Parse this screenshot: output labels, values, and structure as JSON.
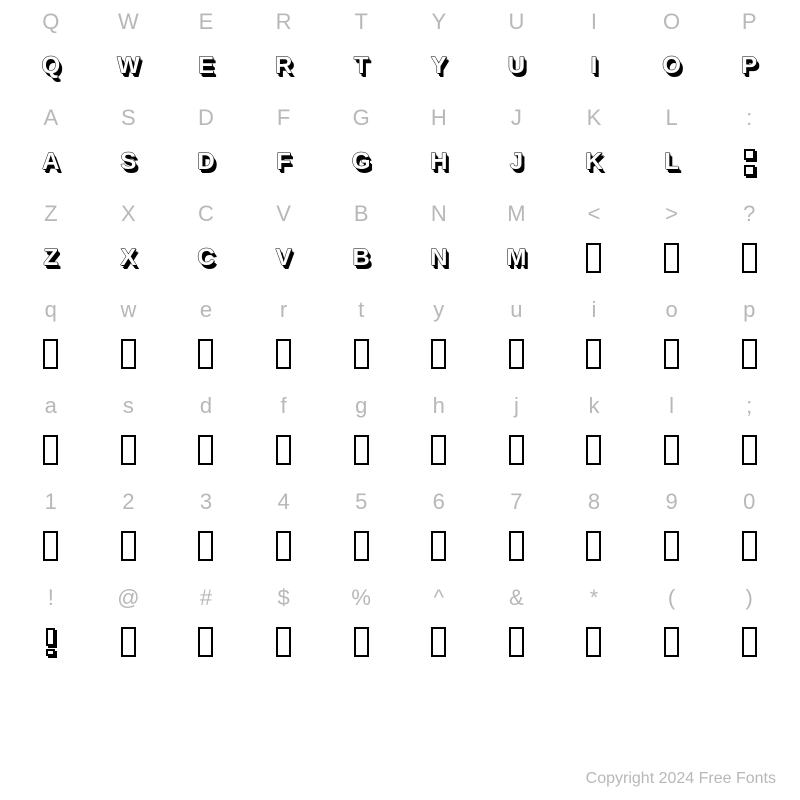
{
  "background_color": "#ffffff",
  "label_color": "#b8b8b8",
  "label_fontsize": 22,
  "glyph_color": "#000000",
  "glyph_fill": "#ffffff",
  "glyph_fontsize": 24,
  "grid": {
    "cols": 10,
    "rows": 7
  },
  "rows": [
    {
      "labels": [
        "Q",
        "W",
        "E",
        "R",
        "T",
        "Y",
        "U",
        "I",
        "O",
        "P"
      ],
      "glyphs": [
        {
          "type": "letter",
          "value": "Q"
        },
        {
          "type": "letter",
          "value": "W"
        },
        {
          "type": "letter",
          "value": "E"
        },
        {
          "type": "letter",
          "value": "R"
        },
        {
          "type": "letter",
          "value": "T"
        },
        {
          "type": "letter",
          "value": "Y"
        },
        {
          "type": "letter",
          "value": "U"
        },
        {
          "type": "letter",
          "value": "I"
        },
        {
          "type": "letter",
          "value": "O"
        },
        {
          "type": "letter",
          "value": "P"
        }
      ]
    },
    {
      "labels": [
        "A",
        "S",
        "D",
        "F",
        "G",
        "H",
        "J",
        "K",
        "L",
        ":"
      ],
      "glyphs": [
        {
          "type": "letter",
          "value": "A"
        },
        {
          "type": "letter",
          "value": "S"
        },
        {
          "type": "letter",
          "value": "D"
        },
        {
          "type": "letter",
          "value": "F"
        },
        {
          "type": "letter",
          "value": "G"
        },
        {
          "type": "letter",
          "value": "H"
        },
        {
          "type": "letter",
          "value": "J"
        },
        {
          "type": "letter",
          "value": "K"
        },
        {
          "type": "letter",
          "value": "L"
        },
        {
          "type": "colon"
        }
      ]
    },
    {
      "labels": [
        "Z",
        "X",
        "C",
        "V",
        "B",
        "N",
        "M",
        "<",
        ">",
        "?"
      ],
      "glyphs": [
        {
          "type": "letter",
          "value": "Z"
        },
        {
          "type": "letter",
          "value": "X"
        },
        {
          "type": "letter",
          "value": "C"
        },
        {
          "type": "letter",
          "value": "V"
        },
        {
          "type": "letter",
          "value": "B"
        },
        {
          "type": "letter",
          "value": "N"
        },
        {
          "type": "letter",
          "value": "M"
        },
        {
          "type": "tofu"
        },
        {
          "type": "tofu"
        },
        {
          "type": "tofu"
        }
      ]
    },
    {
      "labels": [
        "q",
        "w",
        "e",
        "r",
        "t",
        "y",
        "u",
        "i",
        "o",
        "p"
      ],
      "glyphs": [
        {
          "type": "tofu"
        },
        {
          "type": "tofu"
        },
        {
          "type": "tofu"
        },
        {
          "type": "tofu"
        },
        {
          "type": "tofu"
        },
        {
          "type": "tofu"
        },
        {
          "type": "tofu"
        },
        {
          "type": "tofu"
        },
        {
          "type": "tofu"
        },
        {
          "type": "tofu"
        }
      ]
    },
    {
      "labels": [
        "a",
        "s",
        "d",
        "f",
        "g",
        "h",
        "j",
        "k",
        "l",
        ";"
      ],
      "glyphs": [
        {
          "type": "tofu"
        },
        {
          "type": "tofu"
        },
        {
          "type": "tofu"
        },
        {
          "type": "tofu"
        },
        {
          "type": "tofu"
        },
        {
          "type": "tofu"
        },
        {
          "type": "tofu"
        },
        {
          "type": "tofu"
        },
        {
          "type": "tofu"
        },
        {
          "type": "tofu"
        }
      ]
    },
    {
      "labels": [
        "1",
        "2",
        "3",
        "4",
        "5",
        "6",
        "7",
        "8",
        "9",
        "0"
      ],
      "glyphs": [
        {
          "type": "tofu"
        },
        {
          "type": "tofu"
        },
        {
          "type": "tofu"
        },
        {
          "type": "tofu"
        },
        {
          "type": "tofu"
        },
        {
          "type": "tofu"
        },
        {
          "type": "tofu"
        },
        {
          "type": "tofu"
        },
        {
          "type": "tofu"
        },
        {
          "type": "tofu"
        }
      ]
    },
    {
      "labels": [
        "!",
        "@",
        "#",
        "$",
        "%",
        "^",
        "&",
        "*",
        "(",
        ")"
      ],
      "glyphs": [
        {
          "type": "excl"
        },
        {
          "type": "tofu"
        },
        {
          "type": "tofu"
        },
        {
          "type": "tofu"
        },
        {
          "type": "tofu"
        },
        {
          "type": "tofu"
        },
        {
          "type": "tofu"
        },
        {
          "type": "tofu"
        },
        {
          "type": "tofu"
        },
        {
          "type": "tofu"
        }
      ]
    }
  ],
  "copyright": "Copyright 2024 Free Fonts"
}
